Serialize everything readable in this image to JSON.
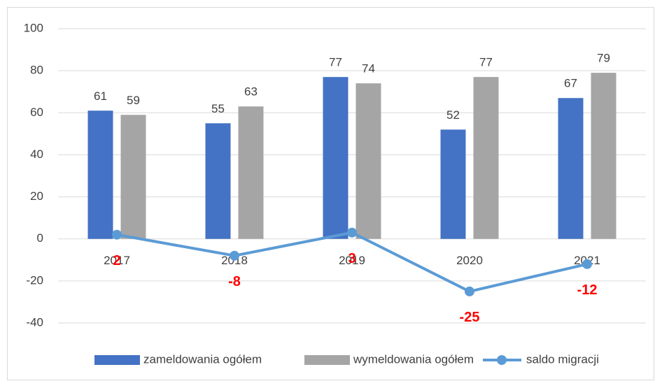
{
  "chart_data": {
    "type": "bar",
    "categories": [
      "2017",
      "2018",
      "2019",
      "2020",
      "2021"
    ],
    "series": [
      {
        "name": "zameldowania ogółem",
        "type": "bar",
        "color": "#4472c4",
        "values": [
          61,
          55,
          77,
          52,
          67
        ]
      },
      {
        "name": "wymeldowania ogółem",
        "type": "bar",
        "color": "#a5a5a5",
        "values": [
          59,
          63,
          74,
          77,
          79
        ]
      },
      {
        "name": "saldo migracji",
        "type": "line",
        "color": "#5b9bd5",
        "label_color": "#ff0000",
        "values": [
          2,
          -8,
          3,
          -25,
          -12
        ]
      }
    ],
    "ylim": [
      -40,
      100
    ],
    "yticks": [
      -40,
      -20,
      0,
      20,
      40,
      60,
      80,
      100
    ],
    "grid": true,
    "legend": "bottom"
  }
}
